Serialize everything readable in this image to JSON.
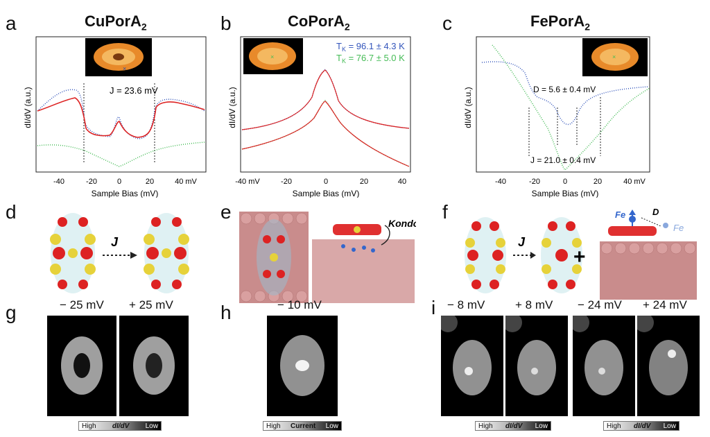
{
  "panels": {
    "a": {
      "letter": "a",
      "title": "CuPorA",
      "title_sub": "2",
      "ylabel": "dI/dV (a.u.)",
      "xlabel": "Sample Bias (mV)",
      "xticks": [
        "-40",
        "-20",
        "0",
        "20",
        "40 mV"
      ],
      "annotation": "J = 23.6 mV"
    },
    "b": {
      "letter": "b",
      "title": "CoPorA",
      "title_sub": "2",
      "ylabel": "dI/dV (a.u.)",
      "xlabel": "Sample Bias (mV)",
      "xticks": [
        "-40 mV",
        "-20",
        "0",
        "20",
        "40"
      ],
      "tk_blue": "T",
      "tk_blue_sub": "K",
      "tk_blue_val": " = 96.1 ± 4.3 K",
      "tk_green": "T",
      "tk_green_sub": "K",
      "tk_green_val": " = 76.7 ± 5.0 K"
    },
    "c": {
      "letter": "c",
      "title": "FePorA",
      "title_sub": "2",
      "ylabel": "dI/dV (a.u.)",
      "xlabel": "Sample Bias (mV)",
      "xticks": [
        "-40",
        "-20",
        "0",
        "20",
        "40 mV"
      ],
      "annotation_d": "D = 5.6 ± 0.4 mV",
      "annotation_j": "J = 21.0 ± 0.4 mV"
    },
    "d": {
      "letter": "d",
      "arrow_label": "J"
    },
    "e": {
      "letter": "e",
      "kondo_label": "Kondo"
    },
    "f": {
      "letter": "f",
      "arrow_label": "J",
      "plus": "+",
      "fe1": "Fe",
      "d_label": "D",
      "fe2": "Fe"
    },
    "g": {
      "letter": "g",
      "bias1": "− 25 mV",
      "bias2": "+ 25 mV",
      "cbar_high": "High",
      "cbar_mid": "dI/dV",
      "cbar_low": "Low"
    },
    "h": {
      "letter": "h",
      "bias1": "− 10 mV",
      "cbar_high": "High",
      "cbar_mid": "Current",
      "cbar_low": "Low"
    },
    "i": {
      "letter": "i",
      "bias1": "− 8 mV",
      "bias2": "+ 8 mV",
      "bias3": "− 24 mV",
      "bias4": "+ 24 mV",
      "cbar_high": "High",
      "cbar_mid": "dI/dV",
      "cbar_low": "Low",
      "cbar2_high": "High",
      "cbar2_mid": "dI/dV",
      "cbar2_low": "Low"
    }
  },
  "colors": {
    "blue": "#3355bb",
    "green": "#44bb55",
    "red": "#dd2222",
    "fe_blue": "#3366cc"
  }
}
